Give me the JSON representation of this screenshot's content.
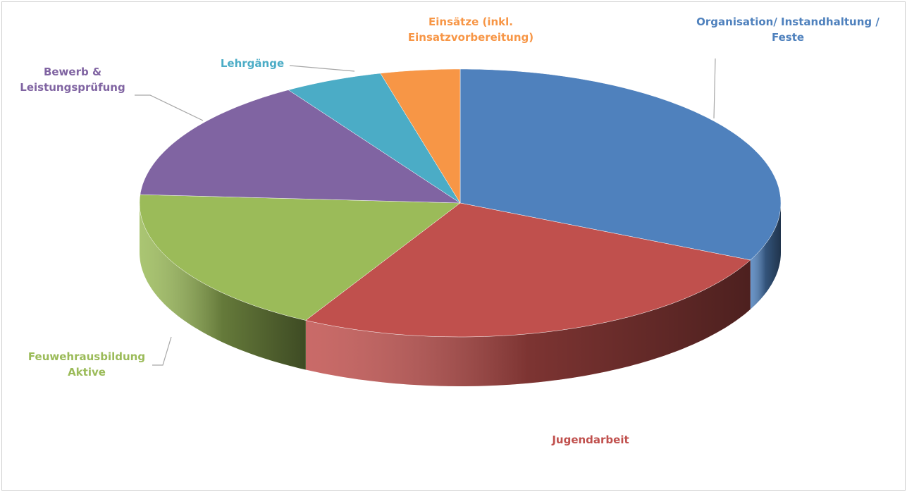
{
  "chart_data": {
    "type": "pie",
    "categories": [
      "Organisation/ Instandhaltung / Feste",
      "Jugendarbeit",
      "Feuwehrausbildung Aktive",
      "Bewerb & Leistungsprüfung",
      "Lehrgänge",
      "Einsätze (inkl. Einsatzvorbereitung)"
    ],
    "values": [
      32,
      26,
      18,
      15,
      5,
      4
    ],
    "colors": [
      "#4f81bd",
      "#c0504d",
      "#9bbb59",
      "#8064a2",
      "#4bacc6",
      "#f79646"
    ]
  }
}
